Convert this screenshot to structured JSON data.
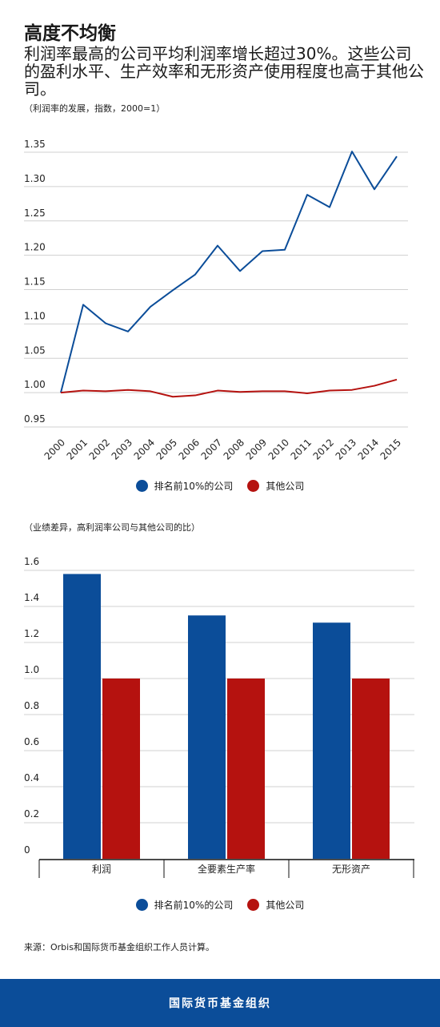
{
  "title": "高度不均衡",
  "subtitle": "利润率最高的公司平均利润率增长超过30%。这些公司的盈利水平、生产效率和无形资产使用程度也高于其他公司。",
  "source": "来源：Orbis和国际货币基金组织工作人员计算。",
  "footer": "国际货币基金组织",
  "colors": {
    "top10": "#0b4d99",
    "others": "#b5120f",
    "footer_bg": "#0b4d99"
  },
  "legend": {
    "top10": "排名前10%的公司",
    "others": "其他公司"
  },
  "chart_data": [
    {
      "type": "line",
      "title": "（利润率的发展，指数，2000=1）",
      "x": [
        "2000",
        "2001",
        "2002",
        "2003",
        "2004",
        "2005",
        "2006",
        "2007",
        "2008",
        "2009",
        "2010",
        "2011",
        "2012",
        "2013",
        "2014",
        "2015"
      ],
      "yticks": [
        "0.95",
        "1.00",
        "1.05",
        "1.10",
        "1.15",
        "1.20",
        "1.25",
        "1.30",
        "1.35"
      ],
      "ylim": [
        0.95,
        1.35
      ],
      "grid": true,
      "series": [
        {
          "name": "排名前10%的公司",
          "values": [
            1.0,
            1.128,
            1.101,
            1.089,
            1.125,
            1.149,
            1.172,
            1.214,
            1.177,
            1.206,
            1.208,
            1.288,
            1.27,
            1.351,
            1.296,
            1.344
          ]
        },
        {
          "name": "其他公司",
          "values": [
            1.0,
            1.003,
            1.002,
            1.004,
            1.002,
            0.994,
            0.996,
            1.003,
            1.001,
            1.002,
            1.002,
            0.999,
            1.003,
            1.004,
            1.01,
            1.019
          ]
        }
      ],
      "legend_position": "bottom"
    },
    {
      "type": "bar",
      "title": "（业绩差异，高利润率公司与其他公司的比）",
      "categories": [
        "利润",
        "全要素生产率",
        "无形资产"
      ],
      "yticks": [
        "0",
        "0.2",
        "0.4",
        "0.6",
        "0.8",
        "1.0",
        "1.2",
        "1.4",
        "1.6"
      ],
      "ylim": [
        0,
        1.6
      ],
      "grid": true,
      "series": [
        {
          "name": "排名前10%的公司",
          "values": [
            1.58,
            1.35,
            1.31
          ]
        },
        {
          "name": "其他公司",
          "values": [
            1.0,
            1.0,
            1.0
          ]
        }
      ],
      "legend_position": "bottom"
    }
  ]
}
